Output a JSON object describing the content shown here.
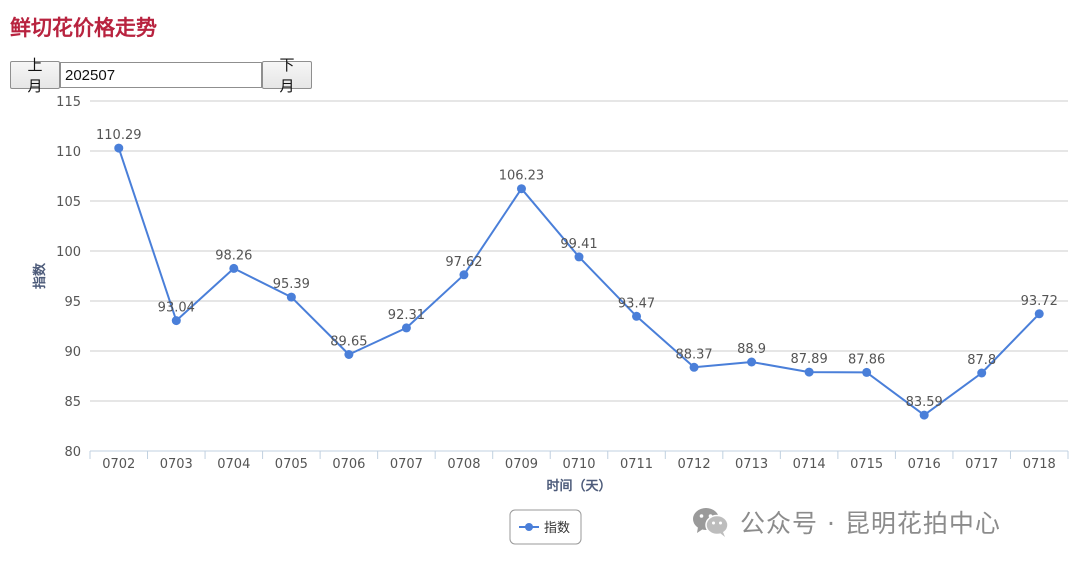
{
  "page": {
    "title": "鲜切花价格走势"
  },
  "controls": {
    "prev_label": "上月",
    "month_value": "202507",
    "next_label": "下月"
  },
  "watermark": {
    "icon": "wechat-icon",
    "text": "公众号 · 昆明花拍中心"
  },
  "colors": {
    "title": "#b8233f",
    "series": "#4a7fd9",
    "grid": "#cccccc"
  },
  "chart_data": {
    "type": "line",
    "title": "",
    "xlabel": "时间（天）",
    "ylabel": "指数",
    "ylim": [
      80,
      115
    ],
    "yticks": [
      80,
      85,
      90,
      95,
      100,
      105,
      110,
      115
    ],
    "grid": true,
    "legend_position": "bottom-center",
    "categories": [
      "0702",
      "0703",
      "0704",
      "0705",
      "0706",
      "0707",
      "0708",
      "0709",
      "0710",
      "0711",
      "0712",
      "0713",
      "0714",
      "0715",
      "0716",
      "0717",
      "0718"
    ],
    "series": [
      {
        "name": "指数",
        "values": [
          110.29,
          93.04,
          98.26,
          95.39,
          89.65,
          92.31,
          97.62,
          106.23,
          99.41,
          93.47,
          88.37,
          88.9,
          87.89,
          87.86,
          83.59,
          87.8,
          93.72
        ],
        "labels": [
          "110.29",
          "93.04",
          "98.26",
          "95.39",
          "89.65",
          "92.31",
          "97.62",
          "106.23",
          "99.41",
          "93.47",
          "88.37",
          "88.9",
          "87.89",
          "87.86",
          "83.59",
          "87.8",
          "93.72"
        ]
      }
    ]
  }
}
